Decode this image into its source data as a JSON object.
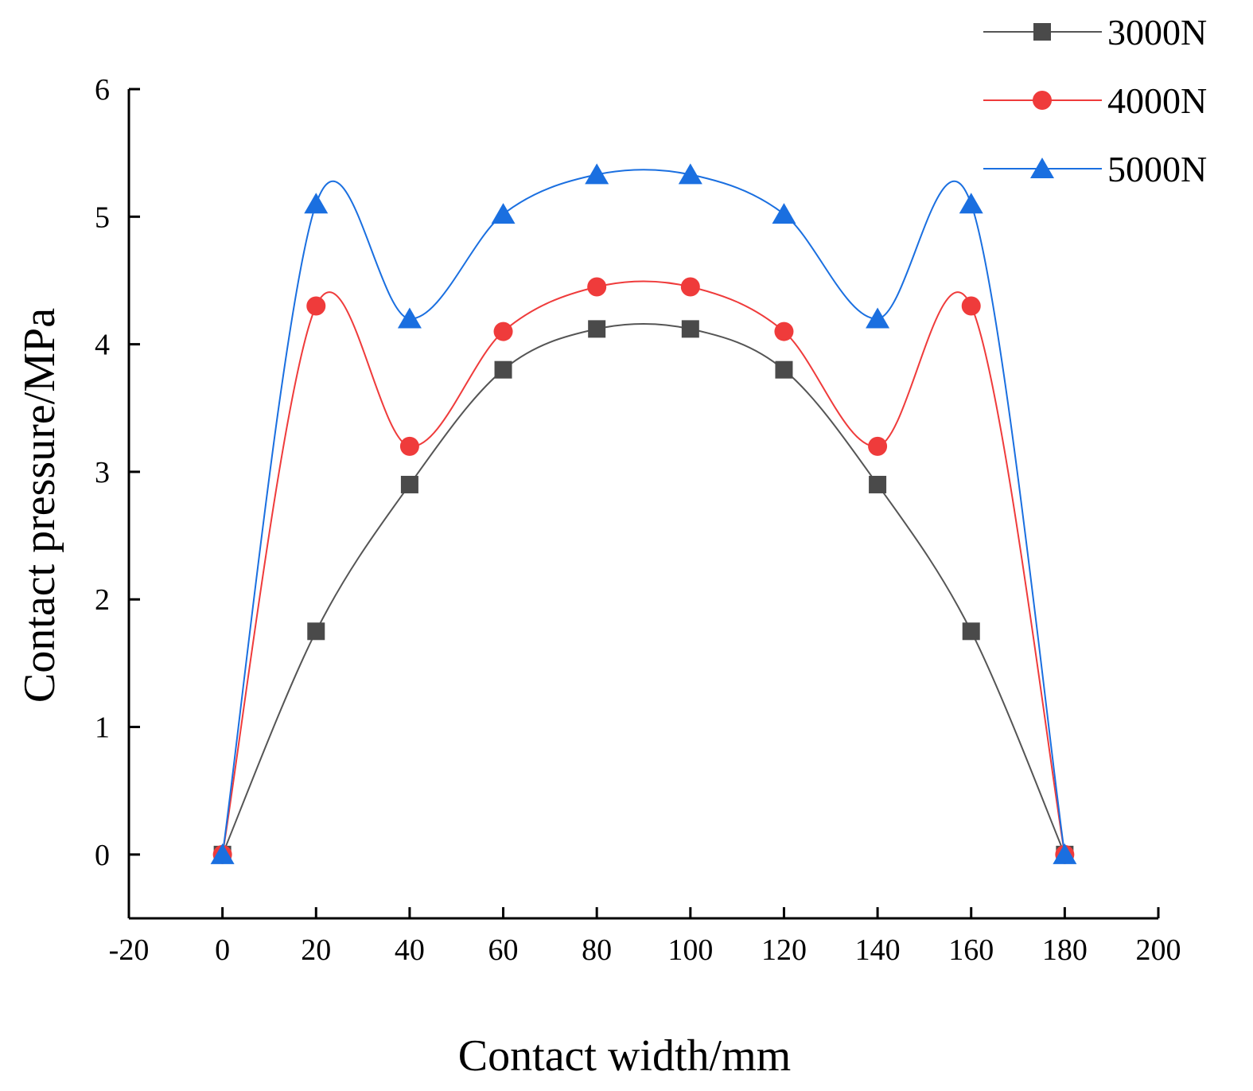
{
  "chart_data": {
    "type": "line",
    "title": "",
    "xlabel": "Contact width/mm",
    "ylabel": "Contact pressure/MPa",
    "xlim": [
      -20,
      200
    ],
    "ylim": [
      -0.5,
      6
    ],
    "xticks": [
      "-20",
      "0",
      "20",
      "40",
      "60",
      "80",
      "100",
      "120",
      "140",
      "160",
      "180",
      "200"
    ],
    "yticks": [
      "0",
      "1",
      "2",
      "3",
      "4",
      "5",
      "6"
    ],
    "grid": false,
    "legend_position": "top-right",
    "x": [
      0,
      20,
      40,
      60,
      80,
      100,
      120,
      140,
      160,
      180
    ],
    "series": [
      {
        "name": "3000N",
        "marker": "square",
        "color": "#4a4a4a",
        "line_color": "#555555",
        "values": [
          0,
          1.75,
          2.9,
          3.8,
          4.12,
          4.12,
          3.8,
          2.9,
          1.75,
          0
        ]
      },
      {
        "name": "4000N",
        "marker": "circle",
        "color": "#ef3b3b",
        "line_color": "#ef3b3b",
        "values": [
          0,
          4.3,
          3.2,
          4.1,
          4.45,
          4.45,
          4.1,
          3.2,
          4.3,
          0
        ]
      },
      {
        "name": "5000N",
        "marker": "triangle",
        "color": "#1a6fe0",
        "line_color": "#1a6fe0",
        "values": [
          0,
          5.1,
          4.2,
          5.02,
          5.33,
          5.33,
          5.02,
          4.2,
          5.1,
          0
        ]
      }
    ]
  }
}
